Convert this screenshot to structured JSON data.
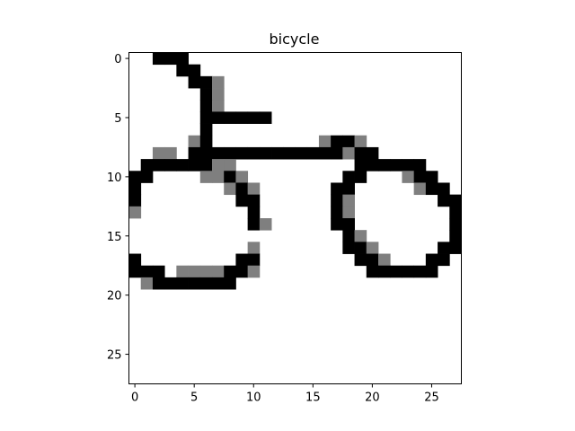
{
  "chart_data": {
    "type": "heatmap",
    "title": "bicycle",
    "xlabel": "",
    "ylabel": "",
    "xlim": [
      -0.5,
      27.5
    ],
    "ylim": [
      27.5,
      -0.5
    ],
    "grid": false,
    "colormap": "gray_r",
    "value_range": [
      0,
      255
    ],
    "x_ticks": [
      0,
      5,
      10,
      15,
      20,
      25
    ],
    "y_ticks": [
      0,
      5,
      10,
      15,
      20,
      25
    ],
    "x_tick_labels": [
      "0",
      "5",
      "10",
      "15",
      "20",
      "25"
    ],
    "y_tick_labels": [
      "0",
      "5",
      "10",
      "15",
      "20",
      "25"
    ],
    "pixels": [
      [
        0,
        2,
        255
      ],
      [
        0,
        3,
        255
      ],
      [
        0,
        4,
        255
      ],
      [
        1,
        4,
        255
      ],
      [
        1,
        5,
        255
      ],
      [
        2,
        5,
        255
      ],
      [
        2,
        6,
        255
      ],
      [
        2,
        7,
        128
      ],
      [
        3,
        6,
        255
      ],
      [
        3,
        7,
        128
      ],
      [
        4,
        6,
        255
      ],
      [
        4,
        7,
        128
      ],
      [
        5,
        6,
        255
      ],
      [
        5,
        7,
        255
      ],
      [
        5,
        8,
        255
      ],
      [
        5,
        9,
        255
      ],
      [
        5,
        10,
        255
      ],
      [
        5,
        11,
        255
      ],
      [
        6,
        6,
        255
      ],
      [
        7,
        5,
        128
      ],
      [
        7,
        6,
        255
      ],
      [
        7,
        16,
        128
      ],
      [
        7,
        17,
        255
      ],
      [
        7,
        18,
        255
      ],
      [
        7,
        19,
        128
      ],
      [
        8,
        2,
        128
      ],
      [
        8,
        3,
        128
      ],
      [
        8,
        5,
        255
      ],
      [
        8,
        6,
        255
      ],
      [
        8,
        7,
        255
      ],
      [
        8,
        8,
        255
      ],
      [
        8,
        9,
        255
      ],
      [
        8,
        10,
        255
      ],
      [
        8,
        11,
        255
      ],
      [
        8,
        12,
        255
      ],
      [
        8,
        13,
        255
      ],
      [
        8,
        14,
        255
      ],
      [
        8,
        15,
        255
      ],
      [
        8,
        16,
        255
      ],
      [
        8,
        17,
        255
      ],
      [
        8,
        18,
        128
      ],
      [
        8,
        19,
        255
      ],
      [
        8,
        20,
        255
      ],
      [
        9,
        1,
        255
      ],
      [
        9,
        2,
        255
      ],
      [
        9,
        3,
        255
      ],
      [
        9,
        4,
        255
      ],
      [
        9,
        5,
        255
      ],
      [
        9,
        6,
        255
      ],
      [
        9,
        7,
        128
      ],
      [
        9,
        8,
        128
      ],
      [
        9,
        19,
        255
      ],
      [
        9,
        20,
        255
      ],
      [
        9,
        21,
        255
      ],
      [
        9,
        22,
        255
      ],
      [
        9,
        23,
        255
      ],
      [
        9,
        24,
        255
      ],
      [
        10,
        0,
        255
      ],
      [
        10,
        1,
        255
      ],
      [
        10,
        6,
        128
      ],
      [
        10,
        7,
        128
      ],
      [
        10,
        8,
        255
      ],
      [
        10,
        9,
        128
      ],
      [
        10,
        18,
        255
      ],
      [
        10,
        19,
        255
      ],
      [
        10,
        23,
        128
      ],
      [
        10,
        24,
        255
      ],
      [
        10,
        25,
        255
      ],
      [
        11,
        0,
        255
      ],
      [
        11,
        8,
        128
      ],
      [
        11,
        9,
        255
      ],
      [
        11,
        10,
        128
      ],
      [
        11,
        17,
        255
      ],
      [
        11,
        18,
        255
      ],
      [
        11,
        24,
        128
      ],
      [
        11,
        25,
        255
      ],
      [
        11,
        26,
        255
      ],
      [
        12,
        0,
        255
      ],
      [
        12,
        9,
        255
      ],
      [
        12,
        10,
        255
      ],
      [
        12,
        17,
        255
      ],
      [
        12,
        18,
        128
      ],
      [
        12,
        26,
        255
      ],
      [
        12,
        27,
        255
      ],
      [
        13,
        0,
        128
      ],
      [
        13,
        10,
        255
      ],
      [
        13,
        17,
        255
      ],
      [
        13,
        18,
        128
      ],
      [
        13,
        27,
        255
      ],
      [
        14,
        10,
        255
      ],
      [
        14,
        11,
        128
      ],
      [
        14,
        17,
        255
      ],
      [
        14,
        18,
        255
      ],
      [
        14,
        27,
        255
      ],
      [
        15,
        18,
        255
      ],
      [
        15,
        19,
        128
      ],
      [
        15,
        27,
        255
      ],
      [
        16,
        10,
        128
      ],
      [
        16,
        18,
        255
      ],
      [
        16,
        19,
        255
      ],
      [
        16,
        20,
        128
      ],
      [
        16,
        26,
        255
      ],
      [
        16,
        27,
        255
      ],
      [
        17,
        0,
        255
      ],
      [
        17,
        9,
        255
      ],
      [
        17,
        10,
        255
      ],
      [
        17,
        19,
        255
      ],
      [
        17,
        20,
        255
      ],
      [
        17,
        21,
        128
      ],
      [
        17,
        25,
        255
      ],
      [
        17,
        26,
        255
      ],
      [
        18,
        0,
        255
      ],
      [
        18,
        1,
        255
      ],
      [
        18,
        2,
        255
      ],
      [
        18,
        4,
        128
      ],
      [
        18,
        5,
        128
      ],
      [
        18,
        6,
        128
      ],
      [
        18,
        7,
        128
      ],
      [
        18,
        8,
        255
      ],
      [
        18,
        9,
        255
      ],
      [
        18,
        10,
        128
      ],
      [
        18,
        20,
        255
      ],
      [
        18,
        21,
        255
      ],
      [
        18,
        22,
        255
      ],
      [
        18,
        23,
        255
      ],
      [
        18,
        24,
        255
      ],
      [
        18,
        25,
        255
      ],
      [
        19,
        1,
        128
      ],
      [
        19,
        2,
        255
      ],
      [
        19,
        3,
        255
      ],
      [
        19,
        4,
        255
      ],
      [
        19,
        5,
        255
      ],
      [
        19,
        6,
        255
      ],
      [
        19,
        7,
        255
      ],
      [
        19,
        8,
        255
      ]
    ]
  }
}
